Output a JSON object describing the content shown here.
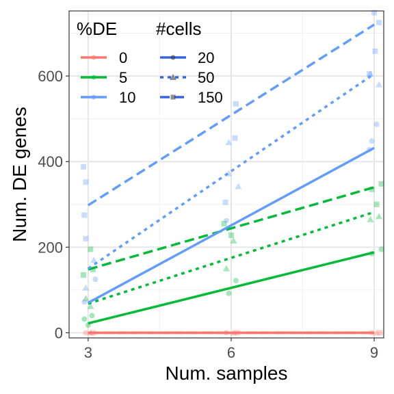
{
  "chart_data": {
    "type": "scatter",
    "xlabel": "Num. samples",
    "ylabel": "Num. DE genes",
    "xlim": [
      2.6,
      9.2
    ],
    "ylim": [
      -12,
      752
    ],
    "x_ticks": [
      3,
      6,
      9
    ],
    "y_ticks": [
      0,
      200,
      400,
      600
    ],
    "grid": true,
    "legend_placement": "top-left",
    "legend": {
      "de_title": "%DE",
      "de_entries": [
        {
          "label": "0",
          "color": "#F8766D"
        },
        {
          "label": "5",
          "color": "#00BA38"
        },
        {
          "label": "10",
          "color": "#619CFF"
        }
      ],
      "cells_title": "#cells",
      "cells_entries": [
        {
          "label": "20",
          "linetype": "solid",
          "shape": "circle"
        },
        {
          "label": "50",
          "linetype": "dotted",
          "shape": "triangle"
        },
        {
          "label": "150",
          "linetype": "dashed",
          "shape": "square"
        }
      ]
    },
    "series": [
      {
        "de": "0",
        "cells": "20",
        "color": "#F8766D",
        "linetype": "solid",
        "fit": [
          [
            3,
            0
          ],
          [
            9,
            0
          ]
        ]
      },
      {
        "de": "0",
        "cells": "50",
        "color": "#F8766D",
        "linetype": "dotted",
        "fit": [
          [
            3,
            0
          ],
          [
            9,
            0
          ]
        ]
      },
      {
        "de": "0",
        "cells": "150",
        "color": "#F8766D",
        "linetype": "dashed",
        "fit": [
          [
            3,
            0
          ],
          [
            9,
            0
          ]
        ]
      },
      {
        "de": "5",
        "cells": "20",
        "color": "#00BA38",
        "linetype": "solid",
        "fit": [
          [
            3,
            22
          ],
          [
            9,
            188
          ]
        ]
      },
      {
        "de": "5",
        "cells": "50",
        "color": "#00BA38",
        "linetype": "dotted",
        "fit": [
          [
            3,
            68
          ],
          [
            9,
            282
          ]
        ]
      },
      {
        "de": "5",
        "cells": "150",
        "color": "#00BA38",
        "linetype": "dashed",
        "fit": [
          [
            3,
            148
          ],
          [
            9,
            340
          ]
        ]
      },
      {
        "de": "10",
        "cells": "20",
        "color": "#619CFF",
        "linetype": "solid",
        "fit": [
          [
            3,
            70
          ],
          [
            9,
            432
          ]
        ]
      },
      {
        "de": "10",
        "cells": "50",
        "color": "#619CFF",
        "linetype": "dotted",
        "fit": [
          [
            3,
            150
          ],
          [
            9,
            605
          ]
        ]
      },
      {
        "de": "10",
        "cells": "150",
        "color": "#619CFF",
        "linetype": "dashed",
        "fit": [
          [
            3,
            298
          ],
          [
            9,
            720
          ]
        ]
      }
    ],
    "points": [
      {
        "x": 2.95,
        "y": 0,
        "de": "0",
        "shape": "circle"
      },
      {
        "x": 3.05,
        "y": 0,
        "de": "0",
        "shape": "triangle"
      },
      {
        "x": 3.1,
        "y": 0,
        "de": "0",
        "shape": "square"
      },
      {
        "x": 5.9,
        "y": 0,
        "de": "0",
        "shape": "circle"
      },
      {
        "x": 6.05,
        "y": 0,
        "de": "0",
        "shape": "triangle"
      },
      {
        "x": 6.12,
        "y": 0,
        "de": "0",
        "shape": "square"
      },
      {
        "x": 8.95,
        "y": 0,
        "de": "0",
        "shape": "circle"
      },
      {
        "x": 9.05,
        "y": 0,
        "de": "0",
        "shape": "triangle"
      },
      {
        "x": 9.12,
        "y": 0,
        "de": "0",
        "shape": "square"
      },
      {
        "x": 2.92,
        "y": 32,
        "de": "5",
        "shape": "circle"
      },
      {
        "x": 3.08,
        "y": 40,
        "de": "5",
        "shape": "circle"
      },
      {
        "x": 3.0,
        "y": 18,
        "de": "5",
        "shape": "circle"
      },
      {
        "x": 2.95,
        "y": 80,
        "de": "5",
        "shape": "triangle"
      },
      {
        "x": 3.05,
        "y": 62,
        "de": "5",
        "shape": "triangle"
      },
      {
        "x": 2.9,
        "y": 135,
        "de": "5",
        "shape": "square"
      },
      {
        "x": 3.05,
        "y": 195,
        "de": "5",
        "shape": "square"
      },
      {
        "x": 3.1,
        "y": 148,
        "de": "5",
        "shape": "square"
      },
      {
        "x": 5.95,
        "y": 92,
        "de": "5",
        "shape": "circle"
      },
      {
        "x": 6.1,
        "y": 122,
        "de": "5",
        "shape": "circle"
      },
      {
        "x": 5.9,
        "y": 150,
        "de": "5",
        "shape": "triangle"
      },
      {
        "x": 6.05,
        "y": 215,
        "de": "5",
        "shape": "triangle"
      },
      {
        "x": 5.85,
        "y": 255,
        "de": "5",
        "shape": "square"
      },
      {
        "x": 6.0,
        "y": 228,
        "de": "5",
        "shape": "square"
      },
      {
        "x": 8.95,
        "y": 185,
        "de": "5",
        "shape": "circle"
      },
      {
        "x": 9.15,
        "y": 195,
        "de": "5",
        "shape": "circle"
      },
      {
        "x": 8.92,
        "y": 265,
        "de": "5",
        "shape": "triangle"
      },
      {
        "x": 9.1,
        "y": 272,
        "de": "5",
        "shape": "triangle"
      },
      {
        "x": 8.95,
        "y": 335,
        "de": "5",
        "shape": "square"
      },
      {
        "x": 9.15,
        "y": 348,
        "de": "5",
        "shape": "square"
      },
      {
        "x": 9.05,
        "y": 300,
        "de": "5",
        "shape": "square"
      },
      {
        "x": 2.92,
        "y": 72,
        "de": "10",
        "shape": "circle"
      },
      {
        "x": 3.15,
        "y": 125,
        "de": "10",
        "shape": "circle"
      },
      {
        "x": 2.95,
        "y": 105,
        "de": "10",
        "shape": "triangle"
      },
      {
        "x": 3.12,
        "y": 170,
        "de": "10",
        "shape": "triangle"
      },
      {
        "x": 2.9,
        "y": 388,
        "de": "10",
        "shape": "square"
      },
      {
        "x": 2.95,
        "y": 352,
        "de": "10",
        "shape": "square"
      },
      {
        "x": 2.92,
        "y": 275,
        "de": "10",
        "shape": "square"
      },
      {
        "x": 2.95,
        "y": 220,
        "de": "10",
        "shape": "square"
      },
      {
        "x": 5.9,
        "y": 262,
        "de": "10",
        "shape": "circle"
      },
      {
        "x": 5.95,
        "y": 445,
        "de": "10",
        "shape": "triangle"
      },
      {
        "x": 6.15,
        "y": 342,
        "de": "10",
        "shape": "triangle"
      },
      {
        "x": 5.95,
        "y": 372,
        "de": "10",
        "shape": "triangle"
      },
      {
        "x": 6.1,
        "y": 535,
        "de": "10",
        "shape": "square"
      },
      {
        "x": 6.08,
        "y": 455,
        "de": "10",
        "shape": "square"
      },
      {
        "x": 5.88,
        "y": 305,
        "de": "10",
        "shape": "square"
      },
      {
        "x": 8.95,
        "y": 448,
        "de": "10",
        "shape": "circle"
      },
      {
        "x": 9.05,
        "y": 487,
        "de": "10",
        "shape": "circle"
      },
      {
        "x": 8.9,
        "y": 428,
        "de": "10",
        "shape": "circle"
      },
      {
        "x": 8.92,
        "y": 605,
        "de": "10",
        "shape": "triangle"
      },
      {
        "x": 9.1,
        "y": 580,
        "de": "10",
        "shape": "triangle"
      },
      {
        "x": 9.0,
        "y": 748,
        "de": "10",
        "shape": "square"
      },
      {
        "x": 9.02,
        "y": 658,
        "de": "10",
        "shape": "square"
      },
      {
        "x": 8.9,
        "y": 605,
        "de": "10",
        "shape": "square"
      },
      {
        "x": 9.1,
        "y": 725,
        "de": "10",
        "shape": "square"
      }
    ]
  }
}
